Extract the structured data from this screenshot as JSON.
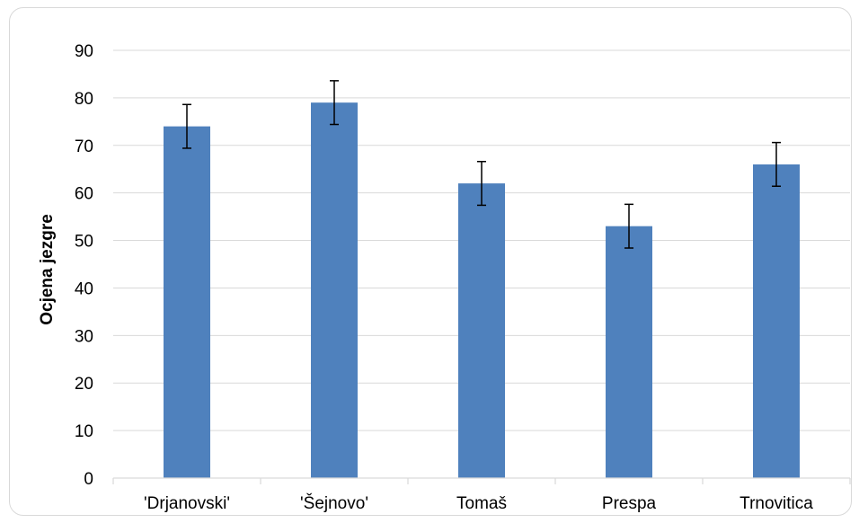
{
  "chart_data": {
    "type": "bar",
    "title": "",
    "xlabel": "",
    "ylabel": "Ocjena jezgre",
    "categories": [
      "'Drjanovski'",
      "'Šejnovo'",
      "Tomaš",
      "Prespa",
      "Trnovitica"
    ],
    "values": [
      74,
      79,
      62,
      53,
      66
    ],
    "error": [
      4.6,
      4.6,
      4.6,
      4.6,
      4.6
    ],
    "ylim": [
      0,
      90
    ],
    "yticks": [
      "0",
      "10",
      "20",
      "30",
      "40",
      "50",
      "60",
      "70",
      "80",
      "90"
    ],
    "grid": true,
    "legend": "none",
    "bar_color": "#4f81bd",
    "gridline_color": "#d9d9d9"
  }
}
